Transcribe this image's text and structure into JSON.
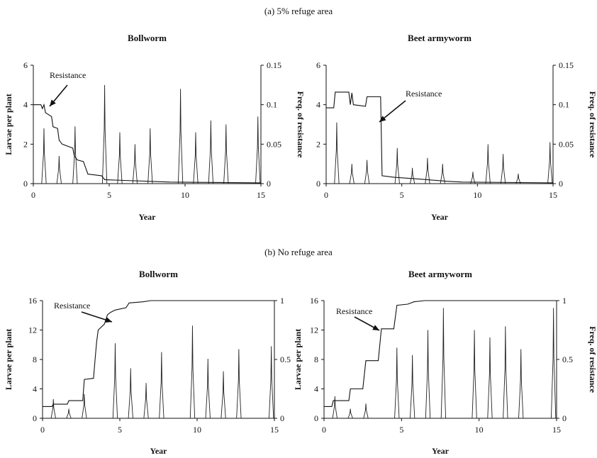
{
  "sections": [
    {
      "label": "(a) 5% refuge area"
    },
    {
      "label": "(b) No refuge area"
    }
  ],
  "chart_data": [
    {
      "type": "line",
      "title": "Bollworm",
      "xlabel": "Year",
      "ylabel": "Larvae per plant",
      "y2label": "Freq. of resistance",
      "xlim": [
        0,
        15
      ],
      "ylim": [
        0,
        6
      ],
      "y2lim": [
        0,
        0.15
      ],
      "xticks": [
        "0",
        "5",
        "10",
        "15"
      ],
      "yticks": [
        "0",
        "2",
        "4",
        "6"
      ],
      "y2ticks": [
        "0",
        "0.05",
        "0.1",
        "0.15"
      ],
      "annotation": "Resistance",
      "series": [
        {
          "axis": "left",
          "peaks": [
            [
              0.7,
              2.8
            ],
            [
              1.7,
              1.4
            ],
            [
              2.75,
              2.9
            ],
            [
              4.7,
              5.0
            ],
            [
              5.7,
              2.6
            ],
            [
              6.7,
              2.0
            ],
            [
              7.7,
              2.8
            ],
            [
              9.7,
              4.8
            ],
            [
              10.7,
              2.6
            ],
            [
              11.7,
              3.2
            ],
            [
              12.7,
              3.0
            ],
            [
              14.8,
              3.4
            ]
          ]
        },
        {
          "axis": "right",
          "points": [
            [
              0,
              0.1
            ],
            [
              0.5,
              0.1
            ],
            [
              0.6,
              0.095
            ],
            [
              0.7,
              0.1
            ],
            [
              0.8,
              0.09
            ],
            [
              1.2,
              0.085
            ],
            [
              1.3,
              0.072
            ],
            [
              1.6,
              0.07
            ],
            [
              1.7,
              0.055
            ],
            [
              1.9,
              0.05
            ],
            [
              2.6,
              0.045
            ],
            [
              2.7,
              0.035
            ],
            [
              2.9,
              0.03
            ],
            [
              3.3,
              0.028
            ],
            [
              3.6,
              0.012
            ],
            [
              4.5,
              0.01
            ],
            [
              4.7,
              0.005
            ],
            [
              6,
              0.004
            ],
            [
              9,
              0.002
            ],
            [
              15,
              0.001
            ]
          ]
        }
      ]
    },
    {
      "type": "line",
      "title": "Beet armyworm",
      "xlabel": "Year",
      "ylabel": "",
      "y2label": "Freq. of resistance",
      "xlim": [
        0,
        15
      ],
      "ylim": [
        0,
        6
      ],
      "y2lim": [
        0,
        0.15
      ],
      "xticks": [
        "0",
        "5",
        "10",
        "15"
      ],
      "yticks": [
        "0",
        "2",
        "4",
        "6"
      ],
      "y2ticks": [
        "0",
        "0.05",
        "0.1",
        "0.15"
      ],
      "annotation": "Resistance",
      "series": [
        {
          "axis": "left",
          "peaks": [
            [
              0.7,
              3.1
            ],
            [
              1.7,
              1.0
            ],
            [
              2.7,
              1.2
            ],
            [
              4.7,
              1.8
            ],
            [
              5.7,
              0.8
            ],
            [
              6.7,
              1.3
            ],
            [
              7.7,
              1.0
            ],
            [
              9.7,
              0.6
            ],
            [
              10.7,
              2.0
            ],
            [
              11.7,
              1.5
            ],
            [
              12.7,
              0.5
            ],
            [
              14.8,
              2.1
            ]
          ]
        },
        {
          "axis": "right",
          "points": [
            [
              0,
              0.096
            ],
            [
              0.5,
              0.096
            ],
            [
              0.6,
              0.116
            ],
            [
              1.5,
              0.116
            ],
            [
              1.6,
              0.1
            ],
            [
              1.7,
              0.115
            ],
            [
              1.8,
              0.1
            ],
            [
              2.6,
              0.098
            ],
            [
              2.7,
              0.11
            ],
            [
              3.6,
              0.11
            ],
            [
              3.7,
              0.01
            ],
            [
              4.5,
              0.008
            ],
            [
              6,
              0.006
            ],
            [
              8,
              0.003
            ],
            [
              9,
              0.002
            ],
            [
              15,
              0.001
            ]
          ]
        }
      ]
    },
    {
      "type": "line",
      "title": "Bollworm",
      "xlabel": "Year",
      "ylabel": "Larvae per plant",
      "y2label": "",
      "xlim": [
        0,
        15
      ],
      "ylim": [
        0,
        16
      ],
      "y2lim": [
        0,
        1
      ],
      "xticks": [
        "0",
        "5",
        "10",
        "15"
      ],
      "yticks": [
        "0",
        "4",
        "8",
        "12",
        "16"
      ],
      "y2ticks": [
        "0",
        "0.5",
        "1"
      ],
      "annotation": "Resistance",
      "series": [
        {
          "axis": "left",
          "peaks": [
            [
              0.7,
              2.6
            ],
            [
              1.7,
              1.3
            ],
            [
              2.7,
              3.3
            ],
            [
              4.7,
              10.2
            ],
            [
              5.7,
              6.8
            ],
            [
              6.7,
              4.8
            ],
            [
              7.7,
              9.0
            ],
            [
              9.7,
              12.6
            ],
            [
              10.7,
              8.1
            ],
            [
              11.7,
              6.4
            ],
            [
              12.7,
              9.4
            ],
            [
              14.8,
              9.8
            ]
          ]
        },
        {
          "axis": "right",
          "points": [
            [
              0,
              0.1
            ],
            [
              0.6,
              0.1
            ],
            [
              0.7,
              0.12
            ],
            [
              1.6,
              0.12
            ],
            [
              1.7,
              0.15
            ],
            [
              2.6,
              0.15
            ],
            [
              2.7,
              0.33
            ],
            [
              3.3,
              0.34
            ],
            [
              3.4,
              0.5
            ],
            [
              3.5,
              0.65
            ],
            [
              3.6,
              0.75
            ],
            [
              4.0,
              0.8
            ],
            [
              4.2,
              0.88
            ],
            [
              4.4,
              0.9
            ],
            [
              4.7,
              0.92
            ],
            [
              5.4,
              0.94
            ],
            [
              5.6,
              0.98
            ],
            [
              6.5,
              0.99
            ],
            [
              7,
              1.0
            ],
            [
              15,
              1.0
            ]
          ]
        }
      ]
    },
    {
      "type": "line",
      "title": "Beet armyworm",
      "xlabel": "Year",
      "ylabel": "Larvae per plant",
      "y2label": "Freq. of resistance",
      "xlim": [
        0,
        15
      ],
      "ylim": [
        0,
        16
      ],
      "y2lim": [
        0,
        1
      ],
      "xticks": [
        "0",
        "5",
        "10",
        "15"
      ],
      "yticks": [
        "0",
        "4",
        "8",
        "12",
        "16"
      ],
      "y2ticks": [
        "0",
        "0.5",
        "1"
      ],
      "annotation": "Resistance",
      "series": [
        {
          "axis": "left",
          "peaks": [
            [
              0.7,
              3.0
            ],
            [
              1.7,
              1.3
            ],
            [
              2.7,
              2.0
            ],
            [
              4.7,
              9.6
            ],
            [
              5.7,
              8.6
            ],
            [
              6.7,
              12.0
            ],
            [
              7.7,
              15.0
            ],
            [
              9.7,
              12.0
            ],
            [
              10.7,
              11.0
            ],
            [
              11.7,
              12.5
            ],
            [
              12.7,
              9.4
            ],
            [
              14.8,
              15.0
            ]
          ]
        },
        {
          "axis": "right",
          "points": [
            [
              0,
              0.1
            ],
            [
              0.5,
              0.1
            ],
            [
              0.6,
              0.15
            ],
            [
              1.6,
              0.15
            ],
            [
              1.7,
              0.25
            ],
            [
              2.5,
              0.25
            ],
            [
              2.7,
              0.49
            ],
            [
              3.5,
              0.49
            ],
            [
              3.7,
              0.76
            ],
            [
              4.5,
              0.76
            ],
            [
              4.7,
              0.96
            ],
            [
              5.4,
              0.97
            ],
            [
              5.8,
              0.99
            ],
            [
              6.5,
              1.0
            ],
            [
              15,
              1.0
            ]
          ]
        }
      ]
    }
  ]
}
